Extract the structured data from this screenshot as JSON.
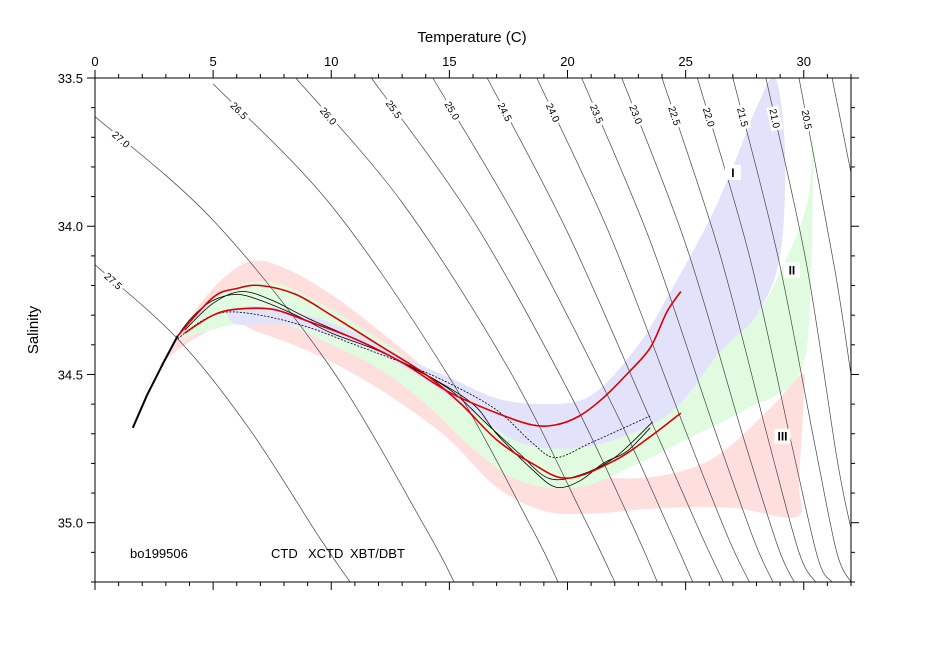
{
  "chart_data": {
    "type": "scatter",
    "title": "",
    "xlabel": "Temperature (C)",
    "ylabel": "Salinity",
    "x_axis_position": "top",
    "y_axis_inverted": true,
    "xlim": [
      0,
      32
    ],
    "ylim": [
      33.5,
      35.2
    ],
    "x_ticks": [
      "0",
      "5",
      "10",
      "15",
      "20",
      "25",
      "30"
    ],
    "y_ticks": [
      "33.5",
      "34.0",
      "34.5",
      "35.0"
    ],
    "grid": false,
    "cruise_label": "bo199506",
    "legend_placement": "bottom-left",
    "legend": [
      {
        "label": "CTD",
        "color": "#000000"
      },
      {
        "label": "XCTD",
        "color": "#22cc22"
      },
      {
        "label": "XBT/DBT",
        "color": "#dd0000"
      }
    ],
    "density_isolines": [
      {
        "label": "27.5",
        "points": [
          [
            0,
            34.13
          ],
          [
            3.5,
            34.38
          ],
          [
            6.5,
            34.68
          ],
          [
            9.5,
            35.05
          ],
          [
            10.8,
            35.2
          ]
        ]
      },
      {
        "label": "27.0",
        "points": [
          [
            0,
            33.63
          ],
          [
            5,
            33.98
          ],
          [
            10,
            34.48
          ],
          [
            14,
            35.02
          ],
          [
            15.2,
            35.2
          ]
        ]
      },
      {
        "label": "26.5",
        "points": [
          [
            5,
            33.52
          ],
          [
            10,
            33.93
          ],
          [
            15,
            34.51
          ],
          [
            18.5,
            35.02
          ],
          [
            19.6,
            35.2
          ]
        ]
      },
      {
        "label": "26.0",
        "points": [
          [
            8.5,
            33.5
          ],
          [
            13,
            33.92
          ],
          [
            17.5,
            34.48
          ],
          [
            20.8,
            35.0
          ],
          [
            22,
            35.2
          ]
        ]
      },
      {
        "label": "25.5",
        "points": [
          [
            11.7,
            33.5
          ],
          [
            16,
            33.98
          ],
          [
            20,
            34.55
          ],
          [
            22.7,
            35.0
          ],
          [
            23.8,
            35.2
          ]
        ]
      },
      {
        "label": "25.0",
        "points": [
          [
            14.3,
            33.5
          ],
          [
            18,
            34.0
          ],
          [
            22,
            34.62
          ],
          [
            24.3,
            35.02
          ],
          [
            25.3,
            35.2
          ]
        ]
      },
      {
        "label": "24.5",
        "points": [
          [
            16.6,
            33.5
          ],
          [
            20,
            34.02
          ],
          [
            23.5,
            34.65
          ],
          [
            25.6,
            35.03
          ],
          [
            26.6,
            35.2
          ]
        ]
      },
      {
        "label": "24.0",
        "points": [
          [
            18.7,
            33.5
          ],
          [
            21.8,
            34.03
          ],
          [
            24.9,
            34.67
          ],
          [
            26.8,
            35.05
          ],
          [
            27.7,
            35.2
          ]
        ]
      },
      {
        "label": "23.5",
        "points": [
          [
            20.6,
            33.5
          ],
          [
            23.5,
            34.05
          ],
          [
            26.2,
            34.68
          ],
          [
            27.9,
            35.06
          ],
          [
            28.7,
            35.2
          ]
        ]
      },
      {
        "label": "23.0",
        "points": [
          [
            22.3,
            33.5
          ],
          [
            25,
            34.06
          ],
          [
            27.4,
            34.7
          ],
          [
            28.9,
            35.08
          ],
          [
            29.6,
            35.2
          ]
        ]
      },
      {
        "label": "22.5",
        "points": [
          [
            24.0,
            33.5
          ],
          [
            26.4,
            34.08
          ],
          [
            28.5,
            34.72
          ],
          [
            29.8,
            35.1
          ],
          [
            30.5,
            35.2
          ]
        ]
      },
      {
        "label": "22.0",
        "points": [
          [
            25.5,
            33.5
          ],
          [
            27.7,
            34.1
          ],
          [
            29.5,
            34.74
          ],
          [
            30.6,
            35.12
          ],
          [
            31.2,
            35.2
          ]
        ]
      },
      {
        "label": "21.5",
        "points": [
          [
            27.0,
            33.5
          ],
          [
            28.9,
            34.1
          ],
          [
            30.5,
            34.75
          ],
          [
            31.4,
            35.1
          ],
          [
            32,
            35.2
          ]
        ]
      },
      {
        "label": "21.0",
        "points": [
          [
            28.4,
            33.5
          ],
          [
            30.1,
            34.12
          ],
          [
            31.4,
            34.78
          ],
          [
            32,
            35.02
          ]
        ]
      },
      {
        "label": "20.5",
        "points": [
          [
            29.8,
            33.5
          ],
          [
            31.3,
            34.14
          ],
          [
            32,
            34.5
          ]
        ]
      },
      {
        "label": "",
        "points": [
          [
            31.2,
            33.5
          ],
          [
            32,
            33.82
          ]
        ]
      }
    ],
    "envelopes": [
      {
        "color": "#ffdede",
        "points": [
          [
            1.8,
            34.6
          ],
          [
            3.5,
            34.37
          ],
          [
            5,
            34.21
          ],
          [
            6.5,
            34.12
          ],
          [
            8,
            34.14
          ],
          [
            10,
            34.23
          ],
          [
            12,
            34.35
          ],
          [
            14,
            34.48
          ],
          [
            16,
            34.6
          ],
          [
            18,
            34.73
          ],
          [
            20,
            34.82
          ],
          [
            23,
            34.85
          ],
          [
            26,
            34.79
          ],
          [
            28.5,
            34.62
          ],
          [
            29.9,
            34.5
          ],
          [
            30,
            34.57
          ],
          [
            29.8,
            34.86
          ],
          [
            29.7,
            34.98
          ],
          [
            27,
            34.95
          ],
          [
            24,
            34.95
          ],
          [
            21,
            34.97
          ],
          [
            19,
            34.96
          ],
          [
            17,
            34.88
          ],
          [
            15,
            34.72
          ],
          [
            13,
            34.6
          ],
          [
            11,
            34.5
          ],
          [
            9,
            34.42
          ],
          [
            7,
            34.36
          ],
          [
            5.5,
            34.33
          ],
          [
            3,
            34.45
          ],
          [
            1.8,
            34.6
          ]
        ]
      },
      {
        "color": "#e0fbe0",
        "points": [
          [
            3.6,
            34.38
          ],
          [
            5,
            34.25
          ],
          [
            6.5,
            34.19
          ],
          [
            8,
            34.2
          ],
          [
            10,
            34.28
          ],
          [
            12,
            34.38
          ],
          [
            14,
            34.49
          ],
          [
            16,
            34.6
          ],
          [
            18,
            34.7
          ],
          [
            20,
            34.74
          ],
          [
            22,
            34.7
          ],
          [
            24.5,
            34.62
          ],
          [
            26.5,
            34.42
          ],
          [
            28,
            34.3
          ],
          [
            29.2,
            34.12
          ],
          [
            30.2,
            33.9
          ],
          [
            30.4,
            33.6
          ],
          [
            30.3,
            34.18
          ],
          [
            29.8,
            34.5
          ],
          [
            27.5,
            34.62
          ],
          [
            25,
            34.72
          ],
          [
            23,
            34.8
          ],
          [
            20.5,
            34.88
          ],
          [
            18,
            34.86
          ],
          [
            16,
            34.75
          ],
          [
            14,
            34.6
          ],
          [
            12,
            34.48
          ],
          [
            10,
            34.4
          ],
          [
            8,
            34.33
          ],
          [
            6,
            34.33
          ],
          [
            3.6,
            34.38
          ]
        ]
      },
      {
        "color": "#e2e2fb",
        "points": [
          [
            5.5,
            34.28
          ],
          [
            7,
            34.27
          ],
          [
            9,
            34.3
          ],
          [
            11,
            34.36
          ],
          [
            13,
            34.44
          ],
          [
            15,
            34.51
          ],
          [
            17,
            34.58
          ],
          [
            19,
            34.6
          ],
          [
            21,
            34.57
          ],
          [
            23,
            34.4
          ],
          [
            24.5,
            34.2
          ],
          [
            26,
            33.98
          ],
          [
            27,
            33.8
          ],
          [
            28,
            33.6
          ],
          [
            28.8,
            33.5
          ],
          [
            29.2,
            33.75
          ],
          [
            29,
            34.1
          ],
          [
            28,
            34.3
          ],
          [
            26.5,
            34.42
          ],
          [
            24.5,
            34.62
          ],
          [
            22,
            34.72
          ],
          [
            20,
            34.75
          ],
          [
            18,
            34.73
          ],
          [
            16,
            34.63
          ],
          [
            14,
            34.52
          ],
          [
            12,
            34.43
          ],
          [
            10,
            34.37
          ],
          [
            8,
            34.33
          ],
          [
            6,
            34.33
          ],
          [
            5.5,
            34.28
          ]
        ]
      }
    ],
    "region_labels": [
      {
        "label": "I",
        "x": 27.0,
        "y": 33.82
      },
      {
        "label": "II",
        "x": 29.5,
        "y": 34.15
      },
      {
        "label": "III",
        "x": 29.1,
        "y": 34.71
      }
    ],
    "series": [
      {
        "type": "line",
        "color": "#000000",
        "points": [
          [
            1.6,
            34.68
          ],
          [
            2.2,
            34.57
          ],
          [
            2.9,
            34.46
          ],
          [
            3.5,
            34.37
          ],
          [
            4.2,
            34.3
          ],
          [
            5,
            34.25
          ],
          [
            6,
            34.23
          ],
          [
            7,
            34.25
          ],
          [
            8.5,
            34.3
          ],
          [
            10,
            34.36
          ],
          [
            12,
            34.42
          ],
          [
            14,
            34.5
          ],
          [
            16,
            34.6
          ],
          [
            17,
            34.7
          ],
          [
            18.5,
            34.82
          ],
          [
            19.5,
            34.88
          ],
          [
            20.5,
            34.86
          ],
          [
            21.5,
            34.8
          ],
          [
            22.5,
            34.76
          ],
          [
            23.5,
            34.68
          ]
        ]
      },
      {
        "type": "line",
        "color": "#000000",
        "points": [
          [
            3.8,
            34.35
          ],
          [
            5,
            34.26
          ],
          [
            6.2,
            34.22
          ],
          [
            7.5,
            34.25
          ],
          [
            9,
            34.31
          ],
          [
            11,
            34.38
          ],
          [
            13,
            34.46
          ],
          [
            15,
            34.55
          ],
          [
            16.5,
            34.66
          ],
          [
            18,
            34.77
          ],
          [
            19.2,
            34.85
          ],
          [
            20.5,
            34.84
          ],
          [
            22,
            34.78
          ],
          [
            23.6,
            34.66
          ]
        ]
      },
      {
        "type": "line",
        "color": "#000000",
        "points": [
          [
            3.5,
            34.38
          ],
          [
            4.5,
            34.32
          ],
          [
            5.5,
            34.29
          ],
          [
            7,
            34.3
          ],
          [
            9,
            34.34
          ],
          [
            11,
            34.4
          ],
          [
            13,
            34.46
          ],
          [
            15,
            34.53
          ],
          [
            17,
            34.62
          ],
          [
            18.5,
            34.73
          ],
          [
            19.5,
            34.78
          ],
          [
            21,
            34.73
          ],
          [
            23.5,
            34.64
          ]
        ]
      },
      {
        "type": "line",
        "color": "#dd0000",
        "points": [
          [
            3.5,
            34.37
          ],
          [
            5,
            34.24
          ],
          [
            6,
            34.21
          ],
          [
            7,
            34.2
          ],
          [
            8.5,
            34.23
          ],
          [
            10,
            34.3
          ],
          [
            12,
            34.4
          ],
          [
            14,
            34.5
          ],
          [
            15.5,
            34.6
          ],
          [
            17,
            34.72
          ],
          [
            18.5,
            34.8
          ],
          [
            20,
            34.85
          ],
          [
            22,
            34.79
          ],
          [
            23.5,
            34.71
          ],
          [
            24.8,
            34.63
          ]
        ]
      },
      {
        "type": "line",
        "color": "#dd0000",
        "points": [
          [
            3.8,
            34.36
          ],
          [
            5,
            34.3
          ],
          [
            6,
            34.28
          ],
          [
            7.5,
            34.28
          ],
          [
            9,
            34.32
          ],
          [
            11,
            34.38
          ],
          [
            13,
            34.46
          ],
          [
            15,
            34.56
          ],
          [
            17,
            34.63
          ],
          [
            18.5,
            34.67
          ],
          [
            19.5,
            34.67
          ],
          [
            20.5,
            34.64
          ],
          [
            21.5,
            34.58
          ],
          [
            22.5,
            34.5
          ],
          [
            23.5,
            34.41
          ],
          [
            24.2,
            34.29
          ],
          [
            24.8,
            34.22
          ]
        ]
      }
    ]
  }
}
